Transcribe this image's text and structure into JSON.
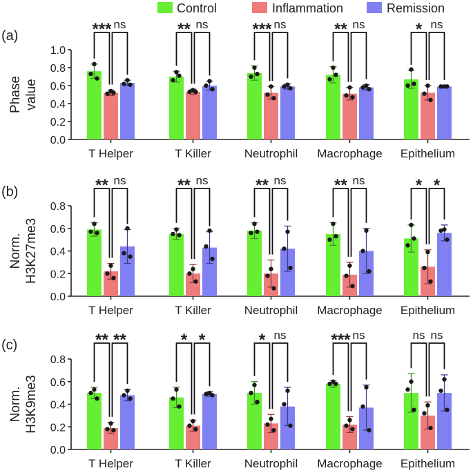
{
  "legend": [
    {
      "name": "Control",
      "color": "#66ee33"
    },
    {
      "name": "Inflammation",
      "color": "#ee7b7b"
    },
    {
      "name": "Remission",
      "color": "#8080f2"
    }
  ],
  "chart_data": [
    {
      "type": "bar",
      "panel_label": "(a)",
      "ylabel": [
        "Phase",
        "value"
      ],
      "ylim": [
        0,
        1.0
      ],
      "yticks": [
        "0.0",
        "0.2",
        "0.4",
        "0.6",
        "0.8",
        "1.0"
      ],
      "categories": [
        "T Helper",
        "T Killer",
        "Neutrophil",
        "Macrophage",
        "Epithelium"
      ],
      "series": [
        {
          "name": "Control",
          "values": [
            0.76,
            0.7,
            0.74,
            0.72,
            0.67
          ],
          "err": [
            0.08,
            0.06,
            0.08,
            0.09,
            0.1
          ],
          "points": [
            [
              0.84,
              0.73,
              0.68
            ],
            [
              0.75,
              0.66,
              0.71
            ],
            [
              0.8,
              0.7,
              0.73
            ],
            [
              0.8,
              0.67,
              0.72
            ],
            [
              0.78,
              0.6,
              0.62
            ]
          ]
        },
        {
          "name": "Inflammation",
          "values": [
            0.52,
            0.53,
            0.52,
            0.51,
            0.52
          ],
          "err": [
            0.03,
            0.03,
            0.07,
            0.07,
            0.08
          ],
          "points": [
            [
              0.54,
              0.51,
              0.52
            ],
            [
              0.55,
              0.53,
              0.53
            ],
            [
              0.59,
              0.5,
              0.46
            ],
            [
              0.58,
              0.49,
              0.47
            ],
            [
              0.6,
              0.51,
              0.44
            ]
          ]
        },
        {
          "name": "Remission",
          "values": [
            0.63,
            0.6,
            0.59,
            0.58,
            0.59
          ],
          "err": [
            0.03,
            0.05,
            0.03,
            0.03,
            0.01
          ],
          "points": [
            [
              0.66,
              0.62,
              0.61
            ],
            [
              0.65,
              0.6,
              0.56
            ],
            [
              0.61,
              0.59,
              0.57
            ],
            [
              0.6,
              0.58,
              0.56
            ],
            [
              0.59,
              0.59,
              0.59
            ]
          ]
        }
      ],
      "significance": [
        [
          "***",
          "ns"
        ],
        [
          "**",
          "ns"
        ],
        [
          "***",
          "ns"
        ],
        [
          "**",
          "ns"
        ],
        [
          "*",
          "ns"
        ]
      ]
    },
    {
      "type": "bar",
      "panel_label": "(b)",
      "ylabel": [
        "Norm.",
        "H3K27me3"
      ],
      "ylim": [
        0,
        0.8
      ],
      "yticks": [
        "0.0",
        "0.2",
        "0.4",
        "0.6",
        "0.8"
      ],
      "categories": [
        "T Helper",
        "T Killer",
        "Neutrophil",
        "Macrophage",
        "Epithelium"
      ],
      "series": [
        {
          "name": "Control",
          "values": [
            0.59,
            0.55,
            0.58,
            0.55,
            0.51
          ],
          "err": [
            0.06,
            0.05,
            0.07,
            0.1,
            0.12
          ],
          "points": [
            [
              0.64,
              0.57,
              0.56
            ],
            [
              0.59,
              0.55,
              0.54
            ],
            [
              0.64,
              0.56,
              0.57
            ],
            [
              0.64,
              0.5,
              0.53
            ],
            [
              0.63,
              0.45,
              0.51
            ]
          ]
        },
        {
          "name": "Inflammation",
          "values": [
            0.22,
            0.2,
            0.2,
            0.19,
            0.26
          ],
          "err": [
            0.07,
            0.08,
            0.12,
            0.11,
            0.15
          ],
          "points": [
            [
              0.27,
              0.2,
              0.16
            ],
            [
              0.24,
              0.2,
              0.13
            ],
            [
              0.24,
              0.18,
              0.07
            ],
            [
              0.27,
              0.18,
              0.09
            ],
            [
              0.39,
              0.25,
              0.13
            ]
          ]
        },
        {
          "name": "Remission",
          "values": [
            0.44,
            0.43,
            0.42,
            0.4,
            0.56
          ],
          "err": [
            0.15,
            0.14,
            0.2,
            0.2,
            0.07
          ],
          "points": [
            [
              0.6,
              0.38,
              0.35
            ],
            [
              0.58,
              0.44,
              0.33
            ],
            [
              0.57,
              0.42,
              0.25
            ],
            [
              0.58,
              0.4,
              0.22
            ],
            [
              0.59,
              0.58,
              0.5
            ]
          ]
        }
      ],
      "significance": [
        [
          "**",
          "ns"
        ],
        [
          "**",
          "ns"
        ],
        [
          "**",
          "ns"
        ],
        [
          "**",
          "ns"
        ],
        [
          "*",
          "*"
        ]
      ]
    },
    {
      "type": "bar",
      "panel_label": "(c)",
      "ylabel": [
        "Norm.",
        "H3K9me3"
      ],
      "ylim": [
        0,
        0.8
      ],
      "yticks": [
        "0.0",
        "0.2",
        "0.4",
        "0.6",
        "0.8"
      ],
      "categories": [
        "T Helper",
        "T Killer",
        "Neutrophil",
        "Macrophage",
        "Epithelium"
      ],
      "series": [
        {
          "name": "Control",
          "values": [
            0.5,
            0.46,
            0.5,
            0.58,
            0.5
          ],
          "err": [
            0.05,
            0.09,
            0.1,
            0.03,
            0.17
          ],
          "points": [
            [
              0.53,
              0.5,
              0.45
            ],
            [
              0.53,
              0.45,
              0.38
            ],
            [
              0.57,
              0.5,
              0.42
            ],
            [
              0.6,
              0.58,
              0.58
            ],
            [
              0.6,
              0.53,
              0.35
            ]
          ]
        },
        {
          "name": "Inflammation",
          "values": [
            0.19,
            0.21,
            0.23,
            0.22,
            0.3
          ],
          "err": [
            0.05,
            0.05,
            0.08,
            0.07,
            0.12
          ],
          "points": [
            [
              0.23,
              0.18,
              0.17
            ],
            [
              0.25,
              0.21,
              0.18
            ],
            [
              0.27,
              0.22,
              0.17
            ],
            [
              0.26,
              0.21,
              0.18
            ],
            [
              0.39,
              0.32,
              0.19
            ]
          ]
        },
        {
          "name": "Remission",
          "values": [
            0.48,
            0.49,
            0.38,
            0.37,
            0.5
          ],
          "err": [
            0.05,
            0.02,
            0.17,
            0.2,
            0.16
          ],
          "points": [
            [
              0.52,
              0.48,
              0.45
            ],
            [
              0.5,
              0.49,
              0.48
            ],
            [
              0.52,
              0.4,
              0.21
            ],
            [
              0.55,
              0.38,
              0.17
            ],
            [
              0.62,
              0.52,
              0.35
            ]
          ]
        }
      ],
      "significance": [
        [
          "**",
          "**"
        ],
        [
          "*",
          "*"
        ],
        [
          "*",
          "ns"
        ],
        [
          "***",
          "ns"
        ],
        [
          "ns",
          "ns"
        ]
      ]
    }
  ]
}
